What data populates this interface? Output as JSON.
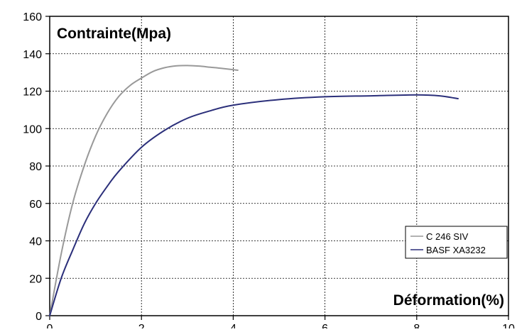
{
  "chart_data": {
    "type": "line",
    "title": "",
    "ylabel": "Contrainte(Mpa)",
    "xlabel": "Déformation(%)",
    "xlim": [
      0,
      10
    ],
    "ylim": [
      0,
      160
    ],
    "x_ticks": [
      "0",
      "2",
      "4",
      "6",
      "8",
      "10"
    ],
    "y_ticks": [
      "0",
      "20",
      "40",
      "60",
      "80",
      "100",
      "120",
      "140",
      "160"
    ],
    "grid": true,
    "legend_position": "bottom-right",
    "series": [
      {
        "name": "C 246 SIV",
        "color": "#999999",
        "x": [
          0,
          0.25,
          0.5,
          0.75,
          1.0,
          1.25,
          1.5,
          1.75,
          2.0,
          2.25,
          2.5,
          2.75,
          3.0,
          3.25,
          3.5,
          3.75,
          4.1
        ],
        "y": [
          0,
          33,
          60,
          80,
          96,
          108,
          117,
          123,
          127,
          130.5,
          132.5,
          133.5,
          133.7,
          133.4,
          132.8,
          132.2,
          131.2
        ]
      },
      {
        "name": "BASF XA3232",
        "color": "#2b2f7a",
        "x": [
          0,
          0.25,
          0.5,
          0.75,
          1.0,
          1.25,
          1.5,
          2.0,
          2.5,
          3.0,
          3.5,
          4.0,
          5.0,
          6.0,
          7.0,
          8.0,
          8.5,
          8.9
        ],
        "y": [
          0,
          20,
          35,
          49,
          60,
          69,
          77,
          90,
          99,
          105.5,
          109.5,
          112.5,
          115.5,
          117,
          117.5,
          118,
          117.5,
          116
        ]
      }
    ]
  }
}
